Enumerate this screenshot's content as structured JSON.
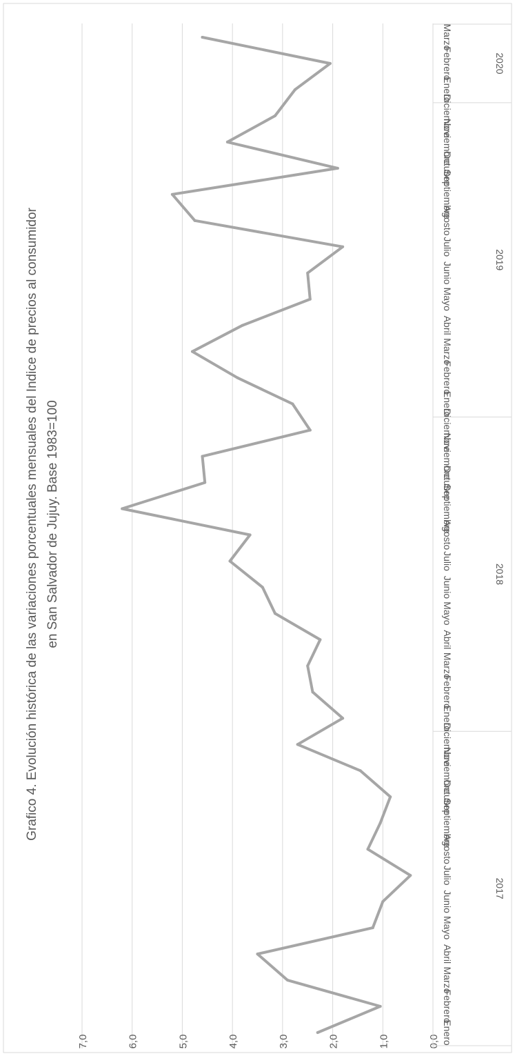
{
  "chart_data": {
    "type": "line",
    "title_line1": "Grafico 4. Evolución histórica de las variaciones porcentuales mensuales del Indice de precios al consumidor",
    "title_line2": "en San Salvador de Jujuy. Base 1983=100",
    "y_ticks": [
      "0,0",
      "1,0",
      "2,0",
      "3,0",
      "4,0",
      "5,0",
      "6,0",
      "7,0"
    ],
    "ylim": [
      0,
      7
    ],
    "grid": true,
    "line_color": "#a6a6a6",
    "years": [
      {
        "label": "2017",
        "months": [
          "Enero",
          "Febrero",
          "Marzo",
          "Abril",
          "Mayo",
          "Junio",
          "Julio",
          "Agosto",
          "Septiembre",
          "Octubre",
          "Noviembre",
          "Diciembre"
        ]
      },
      {
        "label": "2018",
        "months": [
          "Enero",
          "Febrero",
          "Marzo",
          "Abril",
          "Mayo",
          "Junio",
          "Julio",
          "Agosto",
          "Septiembre",
          "Octubre",
          "Noviembre",
          "Diciembre"
        ]
      },
      {
        "label": "2019",
        "months": [
          "Enero",
          "Febrero",
          "Marzo",
          "Abril",
          "Mayo",
          "Junio",
          "Julio",
          "Agosto",
          "Septiembre",
          "Octubre",
          "Noviembre",
          "Diciembre"
        ]
      },
      {
        "label": "2020",
        "months": [
          "Enero",
          "Febrero",
          "Marzo"
        ]
      }
    ],
    "values": [
      2.3,
      1.05,
      2.9,
      3.5,
      1.2,
      1.0,
      0.45,
      1.3,
      1.05,
      0.85,
      1.45,
      2.7,
      1.8,
      2.4,
      2.5,
      2.25,
      3.15,
      3.4,
      4.05,
      3.65,
      6.2,
      4.55,
      4.6,
      2.45,
      2.8,
      3.9,
      4.8,
      3.8,
      2.45,
      2.5,
      1.8,
      4.75,
      5.2,
      1.9,
      4.1,
      3.15,
      2.75,
      2.05,
      4.6
    ]
  }
}
